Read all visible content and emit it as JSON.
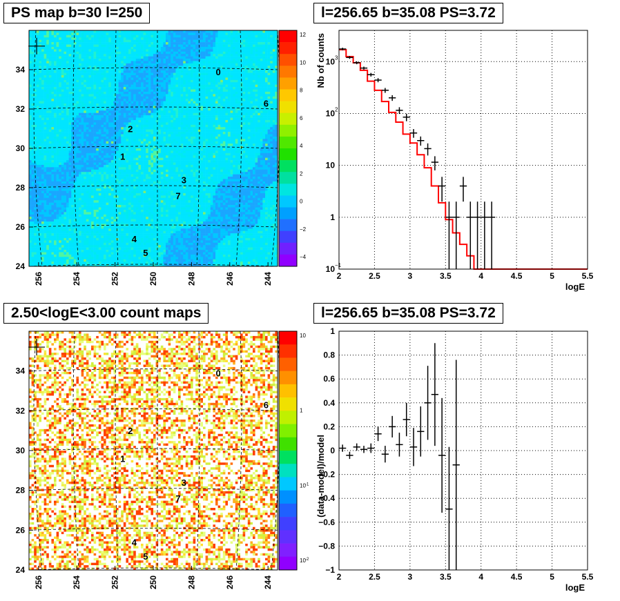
{
  "panels": {
    "map1_title": "PS map b=30 l=250",
    "spec_title": "l=256.65 b=35.08 PS=3.72",
    "map2_title": "2.50<logE<3.00 count maps",
    "resid_title": "l=256.65 b=35.08 PS=3.72"
  },
  "colors": {
    "map1_base": "#00e5ff",
    "model_line": "#ff0000",
    "data_points": "#000000"
  },
  "chart_data": [
    {
      "type": "heatmap",
      "title": "PS map b=30 l=250",
      "x_ticks": [
        "256",
        "254",
        "252",
        "250",
        "248",
        "246",
        "244"
      ],
      "y_ticks": [
        "24",
        "26",
        "28",
        "30",
        "32",
        "34"
      ],
      "xlim": [
        256.5,
        243.5
      ],
      "ylim": [
        24,
        36
      ],
      "colorbar_ticks": [
        "12",
        "10",
        "8",
        "6",
        "4",
        "2",
        "0",
        "−2",
        "−4"
      ],
      "colorbar_range": [
        -5,
        12
      ],
      "sources": [
        {
          "label": "0",
          "l": 246.6,
          "b": 33.9
        },
        {
          "label": "1",
          "l": 251.6,
          "b": 29.6
        },
        {
          "label": "2",
          "l": 251.2,
          "b": 31.0
        },
        {
          "label": "3",
          "l": 248.4,
          "b": 28.4
        },
        {
          "label": "4",
          "l": 251.0,
          "b": 25.4
        },
        {
          "label": "5",
          "l": 250.4,
          "b": 24.7
        },
        {
          "label": "6",
          "l": 244.1,
          "b": 32.3
        },
        {
          "label": "7",
          "l": 248.7,
          "b": 27.6
        }
      ],
      "marker": {
        "l": 256.1,
        "b": 35.2
      }
    },
    {
      "type": "line",
      "title": "l=256.65 b=35.08 PS=3.72",
      "xlabel": "logE",
      "ylabel": "Nb of counts",
      "xlim": [
        2,
        5.5
      ],
      "ylim": [
        0.1,
        4000
      ],
      "log_y": true,
      "grid": true,
      "x_ticks": [
        "2",
        "2.5",
        "3",
        "3.5",
        "4",
        "4.5",
        "5",
        "5.5"
      ],
      "y_ticks": [
        {
          "v": 1000,
          "label": "10",
          "sup": "3"
        },
        {
          "v": 100,
          "label": "10",
          "sup": "2"
        },
        {
          "v": 10,
          "label": "10",
          "sup": ""
        },
        {
          "v": 1,
          "label": "1",
          "sup": ""
        },
        {
          "v": 0.1,
          "label": "10",
          "sup": "−1"
        }
      ],
      "model_bin_width": 0.1,
      "model": [
        1700,
        1250,
        950,
        680,
        420,
        280,
        170,
        105,
        68,
        40,
        27,
        16,
        9,
        4,
        1.9,
        0.9,
        0.5,
        0.3,
        0.18,
        0.1,
        0.1,
        0.1,
        0.1,
        0.1,
        0.1,
        0.1,
        0.1,
        0.1,
        0.1,
        0.1,
        0.1,
        0.1,
        0.1,
        0.1,
        0.1
      ],
      "data": [
        {
          "x": 2.05,
          "y": 1750,
          "lo": 1650,
          "hi": 1850
        },
        {
          "x": 2.15,
          "y": 1200,
          "lo": 1130,
          "hi": 1280
        },
        {
          "x": 2.25,
          "y": 950,
          "lo": 890,
          "hi": 1010
        },
        {
          "x": 2.35,
          "y": 750,
          "lo": 700,
          "hi": 800
        },
        {
          "x": 2.45,
          "y": 560,
          "lo": 515,
          "hi": 605
        },
        {
          "x": 2.55,
          "y": 440,
          "lo": 400,
          "hi": 480
        },
        {
          "x": 2.65,
          "y": 280,
          "lo": 250,
          "hi": 310
        },
        {
          "x": 2.75,
          "y": 200,
          "lo": 175,
          "hi": 225
        },
        {
          "x": 2.85,
          "y": 115,
          "lo": 98,
          "hi": 132
        },
        {
          "x": 2.95,
          "y": 85,
          "lo": 71,
          "hi": 99
        },
        {
          "x": 3.05,
          "y": 42,
          "lo": 34,
          "hi": 50
        },
        {
          "x": 3.15,
          "y": 30,
          "lo": 24,
          "hi": 36
        },
        {
          "x": 3.25,
          "y": 21,
          "lo": 15.5,
          "hi": 26.5
        },
        {
          "x": 3.35,
          "y": 11.5,
          "lo": 8,
          "hi": 15
        },
        {
          "x": 3.45,
          "y": 4,
          "lo": 2,
          "hi": 6
        },
        {
          "x": 3.55,
          "y": 1,
          "lo": 0.1,
          "hi": 2
        },
        {
          "x": 3.65,
          "y": 1,
          "lo": 0.1,
          "hi": 2
        },
        {
          "x": 3.75,
          "y": 4,
          "lo": 2,
          "hi": 6
        },
        {
          "x": 3.85,
          "y": 1,
          "lo": 0.1,
          "hi": 2
        },
        {
          "x": 3.95,
          "y": 1,
          "lo": 0.1,
          "hi": 2
        },
        {
          "x": 4.05,
          "y": 1,
          "lo": 0.1,
          "hi": 2
        },
        {
          "x": 4.15,
          "y": 1,
          "lo": 0.1,
          "hi": 2
        }
      ]
    },
    {
      "type": "heatmap",
      "title": "2.50<logE<3.00 count maps",
      "x_ticks": [
        "256",
        "254",
        "252",
        "250",
        "248",
        "246",
        "244"
      ],
      "y_ticks": [
        "24",
        "26",
        "28",
        "30",
        "32",
        "34"
      ],
      "xlim": [
        256.5,
        243.5
      ],
      "ylim": [
        24,
        36
      ],
      "colorbar_ticks": [
        {
          "label": "10",
          "sup": ""
        },
        {
          "label": "1",
          "sup": ""
        },
        {
          "label": "10",
          "sup": "-1"
        },
        {
          "label": "10",
          "sup": "-2"
        }
      ],
      "colorbar_range": [
        0.01,
        10
      ],
      "log_z": true
    },
    {
      "type": "scatter",
      "title": "l=256.65 b=35.08 PS=3.72",
      "xlabel": "logE",
      "ylabel": "(data-model)/model",
      "xlim": [
        2,
        5.5
      ],
      "ylim": [
        -1,
        1
      ],
      "grid": true,
      "x_ticks": [
        "2",
        "2.5",
        "3",
        "3.5",
        "4",
        "4.5",
        "5",
        "5.5"
      ],
      "y_ticks": [
        "1",
        "0.8",
        "0.6",
        "0.4",
        "0.2",
        "0",
        "−0.2",
        "−0.4",
        "−0.6",
        "−0.8",
        "−1"
      ],
      "data": [
        {
          "x": 2.05,
          "y": 0.02,
          "err": 0.03
        },
        {
          "x": 2.15,
          "y": -0.04,
          "err": 0.03
        },
        {
          "x": 2.25,
          "y": 0.03,
          "err": 0.03
        },
        {
          "x": 2.35,
          "y": 0.01,
          "err": 0.03
        },
        {
          "x": 2.45,
          "y": 0.02,
          "err": 0.04
        },
        {
          "x": 2.55,
          "y": 0.14,
          "err": 0.06
        },
        {
          "x": 2.65,
          "y": -0.03,
          "err": 0.07
        },
        {
          "x": 2.75,
          "y": 0.2,
          "err": 0.09
        },
        {
          "x": 2.85,
          "y": 0.05,
          "err": 0.1
        },
        {
          "x": 2.95,
          "y": 0.26,
          "err": 0.14
        },
        {
          "x": 3.05,
          "y": 0.03,
          "err": 0.16
        },
        {
          "x": 3.15,
          "y": 0.16,
          "err": 0.21
        },
        {
          "x": 3.25,
          "y": 0.4,
          "err": 0.31
        },
        {
          "x": 3.35,
          "y": 0.47,
          "err": 0.43
        },
        {
          "x": 3.45,
          "y": -0.04,
          "err": 0.48
        },
        {
          "x": 3.55,
          "y": -0.49,
          "err": 0.52
        },
        {
          "x": 3.65,
          "y": -0.12,
          "err": 0.88
        }
      ]
    }
  ]
}
